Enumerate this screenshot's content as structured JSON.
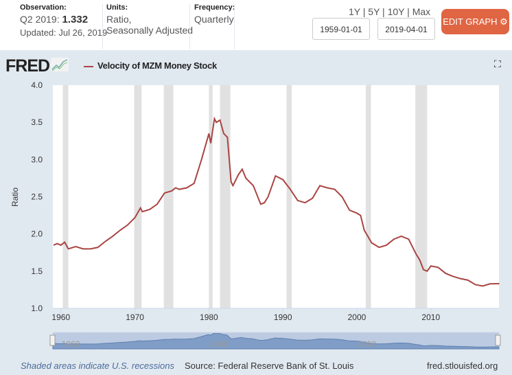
{
  "observation": {
    "label": "Observation:",
    "period": "Q2 2019:",
    "value": "1.332",
    "updated": "Updated: Jul 26, 2019"
  },
  "units": {
    "label": "Units:",
    "line1": "Ratio,",
    "line2": "Seasonally Adjusted"
  },
  "frequency": {
    "label": "Frequency:",
    "value": "Quarterly"
  },
  "ranges": [
    "1Y",
    "5Y",
    "10Y",
    "Max"
  ],
  "start_date": "1959-01-01",
  "end_date": "2019-04-01",
  "edit_label": "EDIT GRAPH",
  "logo": "FRED",
  "footer": {
    "recessions": "Shaded areas indicate U.S. recessions",
    "source": "Source: Federal Reserve Bank of St. Louis",
    "site": "fred.stlouisfed.org"
  },
  "colors": {
    "line": "#a94442",
    "accent": "#e06543",
    "recession": "#e1e1e1",
    "navigator": "#7f9dc6"
  },
  "chart_data": {
    "type": "line",
    "title": "",
    "legend": "Velocity of MZM Money Stock",
    "ylabel": "Ratio",
    "ylim": [
      1.0,
      4.0
    ],
    "xlim": [
      1959,
      2019.5
    ],
    "yticks": [
      "1.0",
      "1.5",
      "2.0",
      "2.5",
      "3.0",
      "3.5",
      "4.0"
    ],
    "xticks": [
      "1960",
      "1970",
      "1980",
      "1990",
      "2000",
      "2010"
    ],
    "navigator_ticks": [
      "1960",
      "1980",
      "2000"
    ],
    "grid": false,
    "recessions": [
      [
        1960.25,
        1961.0
      ],
      [
        1969.9,
        1970.9
      ],
      [
        1973.9,
        1975.2
      ],
      [
        1980.0,
        1980.5
      ],
      [
        1981.5,
        1982.9
      ],
      [
        1990.5,
        1991.2
      ],
      [
        2001.2,
        2001.9
      ],
      [
        2007.9,
        2009.5
      ]
    ],
    "x": [
      1959,
      1959.5,
      1960,
      1960.5,
      1961,
      1962,
      1963,
      1964,
      1965,
      1966,
      1967,
      1968,
      1969,
      1970,
      1970.75,
      1971,
      1972,
      1973,
      1974,
      1975,
      1975.5,
      1976,
      1977,
      1978,
      1979,
      1980,
      1980.25,
      1980.75,
      1981,
      1981.5,
      1982,
      1982.5,
      1983,
      1983.25,
      1984,
      1984.5,
      1985,
      1986,
      1987,
      1987.5,
      1988,
      1989,
      1990,
      1991,
      1992,
      1993,
      1994,
      1995,
      1996,
      1997,
      1998,
      1999,
      2000,
      2000.5,
      2001,
      2002,
      2003,
      2004,
      2005,
      2006,
      2007,
      2008,
      2008.5,
      2009,
      2009.5,
      2010,
      2011,
      2012,
      2013,
      2014,
      2015,
      2016,
      2017,
      2018,
      2019.25
    ],
    "y": [
      1.85,
      1.87,
      1.85,
      1.89,
      1.8,
      1.83,
      1.8,
      1.8,
      1.82,
      1.9,
      1.97,
      2.05,
      2.12,
      2.22,
      2.35,
      2.3,
      2.33,
      2.4,
      2.55,
      2.58,
      2.62,
      2.6,
      2.62,
      2.68,
      3.0,
      3.35,
      3.22,
      3.55,
      3.5,
      3.53,
      3.35,
      3.3,
      2.7,
      2.65,
      2.8,
      2.87,
      2.75,
      2.65,
      2.4,
      2.42,
      2.5,
      2.78,
      2.73,
      2.6,
      2.45,
      2.42,
      2.48,
      2.65,
      2.62,
      2.6,
      2.5,
      2.32,
      2.28,
      2.25,
      2.05,
      1.88,
      1.82,
      1.85,
      1.93,
      1.97,
      1.93,
      1.73,
      1.65,
      1.52,
      1.5,
      1.57,
      1.55,
      1.47,
      1.43,
      1.4,
      1.38,
      1.32,
      1.3,
      1.33,
      1.332
    ]
  }
}
